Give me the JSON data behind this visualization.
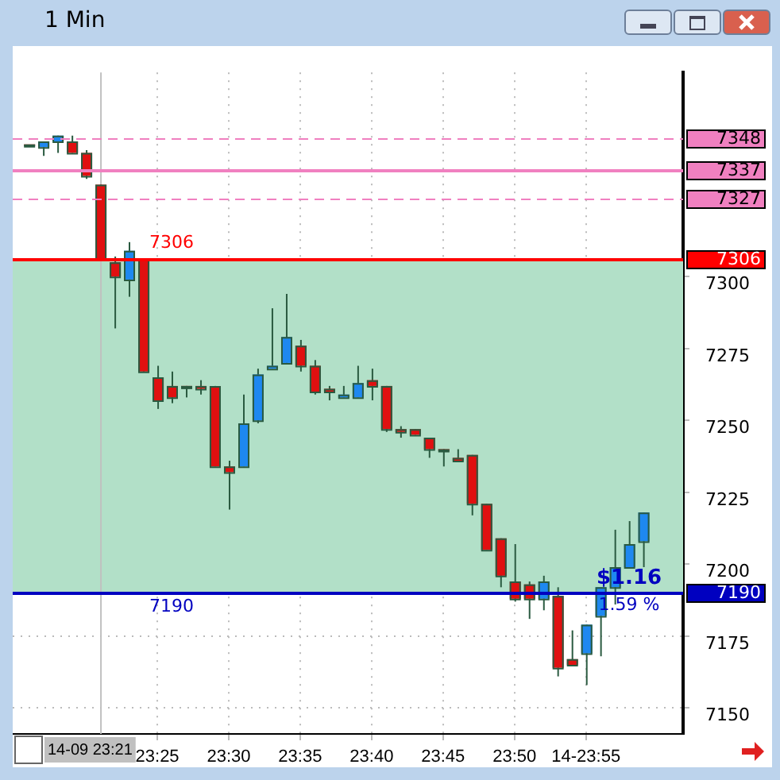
{
  "chart_data": {
    "type": "candlestick",
    "title": "1 Min",
    "x": [
      23.2667,
      23.2833,
      23.3,
      23.3167,
      23.3333,
      23.35,
      23.3667,
      23.3833,
      23.4,
      23.4167,
      23.4333,
      23.45,
      23.4667,
      23.4833,
      23.5,
      23.5167,
      23.5333,
      23.55,
      23.5667,
      23.5833,
      23.6,
      23.6167,
      23.6333,
      23.65,
      23.6667,
      23.6833,
      23.7,
      23.7167,
      23.7333,
      23.75,
      23.7667,
      23.7833,
      23.8,
      23.8167,
      23.8333,
      23.85,
      23.8667,
      23.8833,
      23.9,
      23.9167,
      23.9333,
      23.95,
      23.9667,
      23.9833
    ],
    "ohlc": [
      [
        7346,
        7346,
        7346,
        7346
      ],
      [
        7345,
        7347,
        7342,
        7347
      ],
      [
        7347,
        7349,
        7343,
        7349
      ],
      [
        7347,
        7349,
        7343,
        7343
      ],
      [
        7343,
        7344,
        7334,
        7335
      ],
      [
        7332,
        7332,
        7306,
        7306
      ],
      [
        7305,
        7307,
        7282,
        7300
      ],
      [
        7299,
        7312,
        7293,
        7309
      ],
      [
        7306,
        7306,
        7267,
        7267
      ],
      [
        7265,
        7269,
        7254,
        7257
      ],
      [
        7262,
        7267,
        7256,
        7258
      ],
      [
        7262,
        7262,
        7258,
        7262
      ],
      [
        7262,
        7264,
        7259,
        7261
      ],
      [
        7262,
        7262,
        7234,
        7234
      ],
      [
        7234,
        7236,
        7219,
        7232
      ],
      [
        7234,
        7259,
        7234,
        7249
      ],
      [
        7250,
        7268,
        7249,
        7266
      ],
      [
        7268,
        7289,
        7268,
        7269
      ],
      [
        7270,
        7294,
        7270,
        7279
      ],
      [
        7276,
        7278,
        7267,
        7269
      ],
      [
        7269,
        7271,
        7259,
        7260
      ],
      [
        7261,
        7262,
        7257,
        7260
      ],
      [
        7258,
        7262,
        7258,
        7259
      ],
      [
        7258,
        7269,
        7258,
        7263
      ],
      [
        7264,
        7268,
        7257,
        7262
      ],
      [
        7262,
        7262,
        7246,
        7247
      ],
      [
        7247,
        7248,
        7244,
        7246
      ],
      [
        7247,
        7247,
        7245,
        7245
      ],
      [
        7244,
        7244,
        7237,
        7240
      ],
      [
        7240,
        7240,
        7234,
        7240
      ],
      [
        7237,
        7240,
        7236,
        7236
      ],
      [
        7238,
        7238,
        7217,
        7221
      ],
      [
        7221,
        7221,
        7205,
        7205
      ],
      [
        7209,
        7209,
        7192,
        7196
      ],
      [
        7194,
        7207,
        7187,
        7188
      ],
      [
        7193,
        7194,
        7181,
        7188
      ],
      [
        7188,
        7196,
        7184,
        7194
      ],
      [
        7189,
        7192,
        7161,
        7164
      ],
      [
        7167,
        7177,
        7165,
        7165
      ],
      [
        7169,
        7179,
        7158,
        7179
      ],
      [
        7182,
        7192,
        7168,
        7192
      ],
      [
        7192,
        7212,
        7186,
        7199
      ],
      [
        7199,
        7215,
        7199,
        7207
      ],
      [
        7208,
        7218,
        7199,
        7218
      ]
    ],
    "xlim": [
      23.248,
      24.03
    ],
    "xticks": [
      {
        "value": 23.4167,
        "label": "23:25"
      },
      {
        "value": 23.5,
        "label": "23:30"
      },
      {
        "value": 23.5833,
        "label": "23:35"
      },
      {
        "value": 23.6667,
        "label": "23:40"
      },
      {
        "value": 23.75,
        "label": "23:45"
      },
      {
        "value": 23.8333,
        "label": "23:50"
      },
      {
        "value": 23.9167,
        "label": "14-23:55"
      }
    ],
    "ylim": [
      7141,
      7371
    ],
    "yticks": [
      7150,
      7175,
      7200,
      7225,
      7250,
      7275,
      7300
    ],
    "grid": true,
    "bands": [
      {
        "axis": "y",
        "from": 7190,
        "to": 7306,
        "color": "#b2e0c8"
      }
    ],
    "ref_lines": [
      {
        "axis": "y",
        "value": 7348,
        "label": "7348",
        "color": "#f080c0",
        "line_style": "dashed"
      },
      {
        "axis": "y",
        "value": 7337,
        "label": "7337",
        "color": "#f080c0",
        "line_style": "solid"
      },
      {
        "axis": "y",
        "value": 7327,
        "label": "7327",
        "color": "#f080c0",
        "line_style": "dashed"
      },
      {
        "axis": "y",
        "value": 7306,
        "label": "7306",
        "color": "#ff0000",
        "line_style": "solid"
      },
      {
        "axis": "y",
        "value": 7190,
        "label": "7190",
        "color": "#0000c0",
        "line_style": "solid"
      },
      {
        "axis": "x",
        "value": 23.35,
        "label": "14-09 23:21",
        "color": "#c0c0c0",
        "line_style": "solid"
      }
    ],
    "annotations": [
      "$1.16",
      "1.59 %"
    ]
  }
}
